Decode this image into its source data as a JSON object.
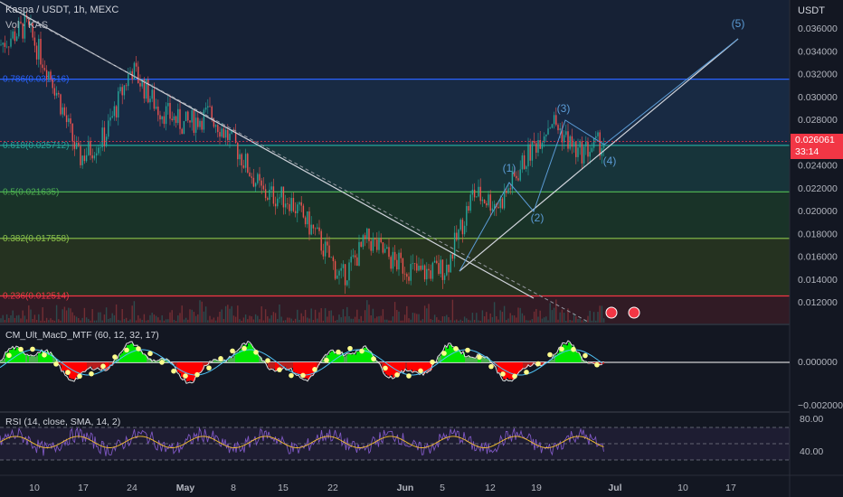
{
  "header": {
    "symbol_line": "Kaspa / USDT, 1h, MEXC",
    "volume_label": "Vol · KAS",
    "currency": "USDT"
  },
  "price_panel": {
    "y_ticks": [
      "0.036000",
      "0.034000",
      "0.032000",
      "0.030000",
      "0.028000",
      "0.026000",
      "0.024000",
      "0.022000",
      "0.020000",
      "0.018000",
      "0.016000",
      "0.014000",
      "0.012000"
    ],
    "current_price": "0.026061",
    "countdown": "33:14",
    "fib_levels": [
      {
        "label": "0.786(0.031516)",
        "value": 0.031516,
        "color": "#2962ff"
      },
      {
        "label": "0.618(0.025712)",
        "value": 0.025712,
        "color": "#26a69a"
      },
      {
        "label": "0.5(0.021635)",
        "value": 0.021635,
        "color": "#4caf50"
      },
      {
        "label": "0.382(0.017558)",
        "value": 0.017558,
        "color": "#8bc34a"
      },
      {
        "label": "0.236(0.012514)",
        "value": 0.012514,
        "color": "#f23645"
      }
    ],
    "wave_labels": [
      "(1)",
      "(2)",
      "(3)",
      "(4)",
      "(5)"
    ]
  },
  "macd_panel": {
    "label": "CM_Ult_MacD_MTF (60, 12, 32, 17)",
    "y_ticks": [
      "0.000000",
      "−0.002000"
    ]
  },
  "rsi_panel": {
    "label": "RSI (14, close, SMA, 14, 2)",
    "y_ticks": [
      "80.00",
      "40.00"
    ]
  },
  "time_axis": {
    "labels": [
      "10",
      "17",
      "24",
      "May",
      "8",
      "15",
      "22",
      "Jun",
      "5",
      "12",
      "19",
      "Jul",
      "10",
      "17"
    ]
  },
  "chart_data": {
    "type": "line",
    "title": "Kaspa / USDT, 1h, MEXC",
    "price_series": {
      "name": "KAS/USDT",
      "x": [
        "Apr 7",
        "Apr 10",
        "Apr 14",
        "Apr 17",
        "Apr 20",
        "Apr 24",
        "Apr 27",
        "May 1",
        "May 4",
        "May 8",
        "May 11",
        "May 15",
        "May 18",
        "May 22",
        "May 25",
        "Jun 1",
        "Jun 5",
        "Jun 8",
        "Jun 12",
        "Jun 15",
        "Jun 19",
        "Jun 22",
        "Jun 25",
        "Jun 28"
      ],
      "values": [
        0.0345,
        0.0362,
        0.0315,
        0.0245,
        0.0265,
        0.0325,
        0.029,
        0.0275,
        0.0285,
        0.0255,
        0.0215,
        0.021,
        0.018,
        0.014,
        0.0175,
        0.0155,
        0.0145,
        0.015,
        0.0215,
        0.0205,
        0.0245,
        0.028,
        0.025,
        0.026
      ]
    },
    "ylim": [
      0.0105,
      0.0375
    ],
    "macd_ylim": [
      -0.0025,
      0.0015
    ],
    "rsi_ylim": [
      20,
      90
    ]
  }
}
